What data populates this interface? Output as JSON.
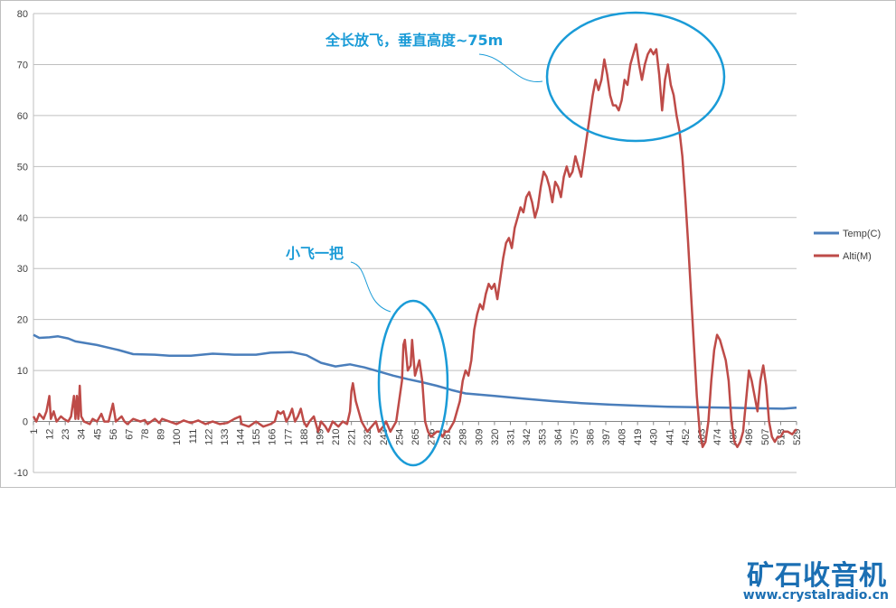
{
  "chart_data": {
    "type": "line",
    "title": "",
    "xlabel": "",
    "ylabel": "",
    "ylim": [
      -10,
      80
    ],
    "yticks": [
      -10,
      0,
      10,
      20,
      30,
      40,
      50,
      60,
      70,
      80
    ],
    "xlim": [
      1,
      529
    ],
    "xticks": [
      1,
      12,
      23,
      34,
      45,
      56,
      67,
      78,
      89,
      100,
      111,
      122,
      133,
      144,
      155,
      166,
      177,
      188,
      199,
      210,
      221,
      232,
      243,
      254,
      265,
      276,
      287,
      298,
      309,
      320,
      331,
      342,
      353,
      364,
      375,
      386,
      397,
      408,
      419,
      430,
      441,
      452,
      463,
      474,
      485,
      496,
      507,
      518,
      529
    ],
    "grid": "horizontal",
    "legend": "right",
    "series": [
      {
        "name": "Temp(C)",
        "color": "#4a7ebb",
        "points": [
          [
            1,
            17
          ],
          [
            5,
            16.4
          ],
          [
            12,
            16.5
          ],
          [
            18,
            16.7
          ],
          [
            25,
            16.3
          ],
          [
            30,
            15.7
          ],
          [
            45,
            15
          ],
          [
            60,
            14
          ],
          [
            70,
            13.2
          ],
          [
            85,
            13.1
          ],
          [
            95,
            12.9
          ],
          [
            110,
            12.9
          ],
          [
            125,
            13.3
          ],
          [
            140,
            13.1
          ],
          [
            155,
            13.1
          ],
          [
            165,
            13.5
          ],
          [
            180,
            13.6
          ],
          [
            190,
            13
          ],
          [
            200,
            11.5
          ],
          [
            210,
            10.8
          ],
          [
            220,
            11.2
          ],
          [
            230,
            10.6
          ],
          [
            240,
            9.8
          ],
          [
            250,
            9
          ],
          [
            260,
            8.3
          ],
          [
            270,
            7.7
          ],
          [
            280,
            7
          ],
          [
            290,
            6.2
          ],
          [
            300,
            5.5
          ],
          [
            320,
            5
          ],
          [
            340,
            4.5
          ],
          [
            360,
            4
          ],
          [
            380,
            3.6
          ],
          [
            400,
            3.3
          ],
          [
            420,
            3.1
          ],
          [
            440,
            2.9
          ],
          [
            460,
            2.8
          ],
          [
            480,
            2.7
          ],
          [
            500,
            2.6
          ],
          [
            520,
            2.5
          ],
          [
            529,
            2.7
          ]
        ]
      },
      {
        "name": "Alti(M)",
        "color": "#be4b48",
        "points": [
          [
            1,
            1
          ],
          [
            3,
            0
          ],
          [
            5,
            1.5
          ],
          [
            8,
            0.5
          ],
          [
            10,
            2
          ],
          [
            12,
            5
          ],
          [
            13,
            0.5
          ],
          [
            15,
            2
          ],
          [
            17,
            0
          ],
          [
            20,
            1
          ],
          [
            22,
            0.5
          ],
          [
            25,
            0
          ],
          [
            27,
            1
          ],
          [
            29,
            5
          ],
          [
            30,
            0.5
          ],
          [
            31,
            5
          ],
          [
            32,
            0.5
          ],
          [
            33,
            7
          ],
          [
            34,
            1
          ],
          [
            36,
            0
          ],
          [
            40,
            -0.5
          ],
          [
            42,
            0.5
          ],
          [
            45,
            0
          ],
          [
            48,
            1.5
          ],
          [
            50,
            0
          ],
          [
            53,
            0
          ],
          [
            56,
            3.5
          ],
          [
            58,
            0
          ],
          [
            62,
            1
          ],
          [
            64,
            0
          ],
          [
            66,
            -0.5
          ],
          [
            70,
            0.5
          ],
          [
            75,
            0
          ],
          [
            78,
            0.3
          ],
          [
            80,
            -0.5
          ],
          [
            85,
            0.5
          ],
          [
            88,
            -0.3
          ],
          [
            90,
            0.5
          ],
          [
            95,
            0
          ],
          [
            100,
            -0.5
          ],
          [
            105,
            0.2
          ],
          [
            110,
            -0.3
          ],
          [
            115,
            0.2
          ],
          [
            120,
            -0.5
          ],
          [
            125,
            0
          ],
          [
            130,
            -0.5
          ],
          [
            135,
            -0.3
          ],
          [
            140,
            0.5
          ],
          [
            144,
            1
          ],
          [
            145,
            -0.5
          ],
          [
            150,
            -1
          ],
          [
            155,
            0
          ],
          [
            160,
            -1
          ],
          [
            165,
            -0.5
          ],
          [
            168,
            0
          ],
          [
            170,
            2
          ],
          [
            172,
            1.5
          ],
          [
            174,
            2
          ],
          [
            176,
            0
          ],
          [
            178,
            1
          ],
          [
            180,
            2.5
          ],
          [
            182,
            0
          ],
          [
            184,
            1
          ],
          [
            186,
            2.5
          ],
          [
            188,
            0
          ],
          [
            190,
            -1
          ],
          [
            192,
            0
          ],
          [
            195,
            1
          ],
          [
            198,
            -2
          ],
          [
            200,
            0
          ],
          [
            203,
            -1
          ],
          [
            205,
            -2
          ],
          [
            208,
            0
          ],
          [
            212,
            -1
          ],
          [
            215,
            0
          ],
          [
            218,
            -0.5
          ],
          [
            220,
            2
          ],
          [
            221,
            6
          ],
          [
            222,
            7.5
          ],
          [
            224,
            4
          ],
          [
            226,
            2
          ],
          [
            228,
            0
          ],
          [
            230,
            -1
          ],
          [
            232,
            -2
          ],
          [
            235,
            -1
          ],
          [
            238,
            0
          ],
          [
            240,
            -2
          ],
          [
            243,
            -1
          ],
          [
            245,
            0
          ],
          [
            248,
            -2
          ],
          [
            250,
            -1
          ],
          [
            252,
            0
          ],
          [
            254,
            4
          ],
          [
            256,
            8
          ],
          [
            257,
            15
          ],
          [
            258,
            16
          ],
          [
            260,
            10
          ],
          [
            262,
            11
          ],
          [
            263,
            16
          ],
          [
            265,
            9
          ],
          [
            268,
            12
          ],
          [
            270,
            8
          ],
          [
            272,
            0
          ],
          [
            274,
            -2
          ],
          [
            276,
            -3
          ],
          [
            278,
            -2.5
          ],
          [
            280,
            -2
          ],
          [
            282,
            -2
          ],
          [
            284,
            -3
          ],
          [
            286,
            -2
          ],
          [
            288,
            -2
          ],
          [
            290,
            -1
          ],
          [
            292,
            0
          ],
          [
            294,
            2
          ],
          [
            296,
            4
          ],
          [
            298,
            8
          ],
          [
            300,
            10
          ],
          [
            302,
            9
          ],
          [
            304,
            12
          ],
          [
            306,
            18
          ],
          [
            308,
            21
          ],
          [
            310,
            23
          ],
          [
            312,
            22
          ],
          [
            314,
            25
          ],
          [
            316,
            27
          ],
          [
            318,
            26
          ],
          [
            320,
            27
          ],
          [
            322,
            24
          ],
          [
            324,
            28
          ],
          [
            326,
            32
          ],
          [
            328,
            35
          ],
          [
            330,
            36
          ],
          [
            332,
            34
          ],
          [
            334,
            38
          ],
          [
            336,
            40
          ],
          [
            338,
            42
          ],
          [
            340,
            41
          ],
          [
            342,
            44
          ],
          [
            344,
            45
          ],
          [
            346,
            43
          ],
          [
            348,
            40
          ],
          [
            350,
            42
          ],
          [
            352,
            46
          ],
          [
            354,
            49
          ],
          [
            356,
            48
          ],
          [
            358,
            46
          ],
          [
            360,
            43
          ],
          [
            362,
            47
          ],
          [
            364,
            46
          ],
          [
            366,
            44
          ],
          [
            368,
            48
          ],
          [
            370,
            50
          ],
          [
            372,
            48
          ],
          [
            374,
            49
          ],
          [
            376,
            52
          ],
          [
            378,
            50
          ],
          [
            380,
            48
          ],
          [
            382,
            52
          ],
          [
            384,
            56
          ],
          [
            386,
            60
          ],
          [
            388,
            64
          ],
          [
            390,
            67
          ],
          [
            392,
            65
          ],
          [
            394,
            67
          ],
          [
            396,
            71
          ],
          [
            398,
            68
          ],
          [
            400,
            64
          ],
          [
            402,
            62
          ],
          [
            404,
            62
          ],
          [
            406,
            61
          ],
          [
            408,
            63
          ],
          [
            410,
            67
          ],
          [
            412,
            66
          ],
          [
            414,
            70
          ],
          [
            416,
            72
          ],
          [
            418,
            74
          ],
          [
            420,
            70
          ],
          [
            422,
            67
          ],
          [
            424,
            70
          ],
          [
            426,
            72
          ],
          [
            428,
            73
          ],
          [
            430,
            72
          ],
          [
            432,
            73
          ],
          [
            434,
            68
          ],
          [
            436,
            61
          ],
          [
            438,
            67
          ],
          [
            440,
            70
          ],
          [
            442,
            66
          ],
          [
            444,
            64
          ],
          [
            446,
            60
          ],
          [
            448,
            57
          ],
          [
            450,
            52
          ],
          [
            452,
            44
          ],
          [
            454,
            35
          ],
          [
            456,
            25
          ],
          [
            458,
            15
          ],
          [
            460,
            5
          ],
          [
            462,
            -2
          ],
          [
            464,
            -5
          ],
          [
            466,
            -4
          ],
          [
            468,
            0
          ],
          [
            470,
            8
          ],
          [
            472,
            14
          ],
          [
            474,
            17
          ],
          [
            476,
            16
          ],
          [
            478,
            14
          ],
          [
            480,
            12
          ],
          [
            482,
            8
          ],
          [
            484,
            0
          ],
          [
            486,
            -4
          ],
          [
            488,
            -5
          ],
          [
            490,
            -4
          ],
          [
            492,
            -2
          ],
          [
            494,
            4
          ],
          [
            496,
            10
          ],
          [
            498,
            8
          ],
          [
            500,
            5
          ],
          [
            502,
            2
          ],
          [
            504,
            8
          ],
          [
            506,
            11
          ],
          [
            508,
            7
          ],
          [
            510,
            0
          ],
          [
            512,
            -3
          ],
          [
            514,
            -4
          ],
          [
            516,
            -3
          ],
          [
            518,
            -3
          ],
          [
            520,
            -2
          ],
          [
            523,
            -2
          ],
          [
            526,
            -2.5
          ],
          [
            529,
            -1.5
          ]
        ]
      }
    ],
    "annotations": [
      {
        "text": "全长放飞，垂直高度~75m"
      },
      {
        "text": "小飞一把"
      }
    ]
  },
  "watermark": {
    "title": "矿石收音机",
    "url": "www.crystalradio.cn"
  }
}
